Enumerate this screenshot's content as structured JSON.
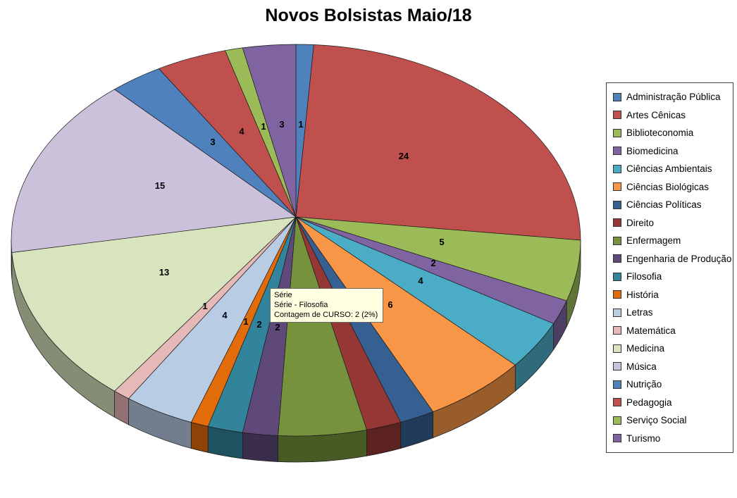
{
  "title": "Novos Bolsistas Maio/18",
  "tooltip": {
    "series_line": "Série",
    "point_line": "Série - Filosofia",
    "value_line": "Contagem de CURSO: 2 (2%)"
  },
  "chart_data": {
    "type": "pie",
    "style": "3d-pie",
    "title": "Novos Bolsistas Maio/18",
    "series_name": "Contagem de CURSO",
    "legend_position": "right",
    "total": 100,
    "categories": [
      "Administração Pública",
      "Artes Cênicas",
      "Biblioteconomia",
      "Biomedicina",
      "Ciências Ambientais",
      "Ciências Biológicas",
      "Ciências Políticas",
      "Direito",
      "Enfermagem",
      "Engenharia de Produção",
      "Filosofia",
      "História",
      "Letras",
      "Matemática",
      "Medicina",
      "Música",
      "Nutrição",
      "Pedagogia",
      "Serviço Social",
      "Turismo"
    ],
    "values": [
      1,
      24,
      5,
      2,
      4,
      6,
      2,
      2,
      5,
      2,
      2,
      1,
      4,
      1,
      13,
      15,
      3,
      4,
      1,
      3
    ],
    "data_labels": [
      "1",
      "24",
      "5",
      "2",
      "4",
      "6",
      null,
      null,
      null,
      "2",
      "2",
      "1",
      "4",
      "1",
      "13",
      "15",
      "3",
      "4",
      "1",
      "3"
    ],
    "colors": [
      "#4F81BD",
      "#C0504D",
      "#9BBB59",
      "#8064A2",
      "#4BACC6",
      "#F79646",
      "#366092",
      "#953734",
      "#76923C",
      "#5F497A",
      "#31849B",
      "#E36C0A",
      "#B8CCE4",
      "#E6B8B7",
      "#D7E4BD",
      "#CCC1DA",
      "#4F81BD",
      "#C0504D",
      "#9BBB59",
      "#8064A2"
    ]
  }
}
